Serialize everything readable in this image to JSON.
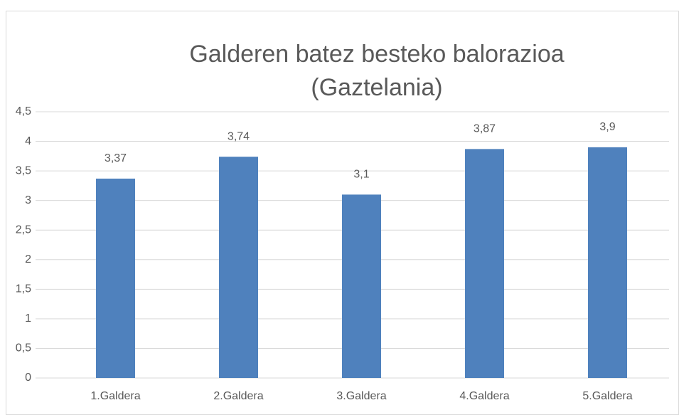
{
  "chart_data": {
    "type": "bar",
    "title": [
      "Galderen batez besteko balorazioa",
      "(Gaztelania)"
    ],
    "categories": [
      "1.Galdera",
      "2.Galdera",
      "3.Galdera",
      "4.Galdera",
      "5.Galdera"
    ],
    "values": [
      3.37,
      3.74,
      3.1,
      3.87,
      3.9
    ],
    "value_labels": [
      "3,37",
      "3,74",
      "3,1",
      "3,87",
      "3,9"
    ],
    "color": "#4f81bd",
    "ylim": [
      0,
      4.5
    ],
    "yticks": [
      0,
      {
        "value": 0.5,
        "label": "0,5"
      },
      1,
      {
        "value": 1.5,
        "label": "1,5"
      },
      2,
      {
        "value": 2.5,
        "label": "2,5"
      },
      3,
      {
        "value": 3.5,
        "label": "3,5"
      },
      4,
      {
        "value": 4.5,
        "label": "4,5"
      }
    ],
    "grid": true
  }
}
